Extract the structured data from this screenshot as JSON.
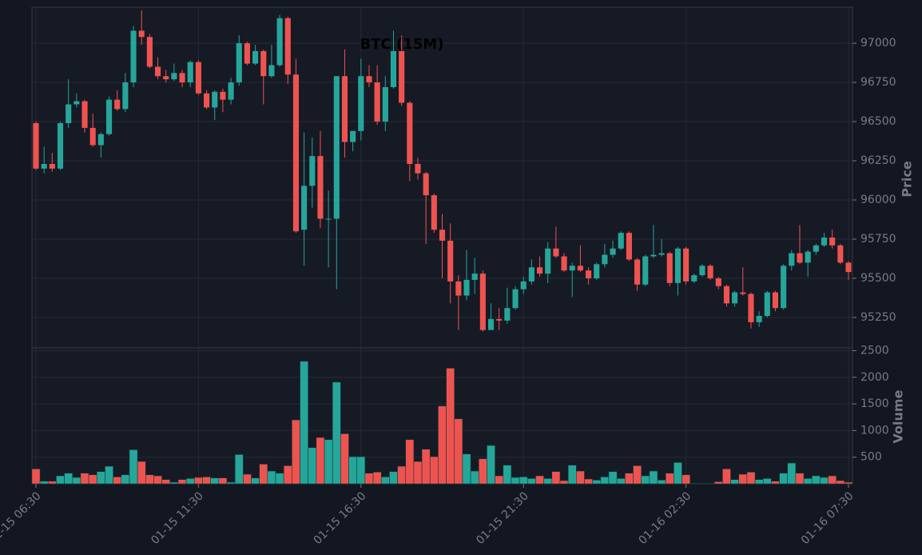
{
  "chart_data": [
    {
      "type": "candlestick",
      "title": "BTC (15M)",
      "ylabel": "Price",
      "up_color": "#26a69a",
      "down_color": "#ef5350",
      "grid": true,
      "x": [
        "01-15 06:30",
        "01-15 06:45",
        "01-15 07:00",
        "01-15 07:15",
        "01-15 07:30",
        "01-15 07:45",
        "01-15 08:00",
        "01-15 08:15",
        "01-15 08:30",
        "01-15 08:45",
        "01-15 09:00",
        "01-15 09:15",
        "01-15 09:30",
        "01-15 09:45",
        "01-15 10:00",
        "01-15 10:15",
        "01-15 10:30",
        "01-15 10:45",
        "01-15 11:00",
        "01-15 11:15",
        "01-15 11:30",
        "01-15 11:45",
        "01-15 12:00",
        "01-15 12:15",
        "01-15 12:30",
        "01-15 12:45",
        "01-15 13:00",
        "01-15 13:15",
        "01-15 13:30",
        "01-15 13:45",
        "01-15 14:00",
        "01-15 14:15",
        "01-15 14:30",
        "01-15 14:45",
        "01-15 15:00",
        "01-15 15:15",
        "01-15 15:30",
        "01-15 15:45",
        "01-15 16:00",
        "01-15 16:15",
        "01-15 16:30",
        "01-15 16:45",
        "01-15 17:00",
        "01-15 17:15",
        "01-15 17:30",
        "01-15 17:45",
        "01-15 18:00",
        "01-15 18:15",
        "01-15 18:30",
        "01-15 18:45",
        "01-15 19:00",
        "01-15 19:15",
        "01-15 19:30",
        "01-15 19:45",
        "01-15 20:00",
        "01-15 20:15",
        "01-15 20:30",
        "01-15 20:45",
        "01-15 21:00",
        "01-15 21:15",
        "01-15 21:30",
        "01-15 21:45",
        "01-15 22:00",
        "01-15 22:15",
        "01-15 22:30",
        "01-15 22:45",
        "01-15 23:00",
        "01-15 23:15",
        "01-15 23:30",
        "01-15 23:45",
        "01-16 00:00",
        "01-16 00:15",
        "01-16 00:30",
        "01-16 00:45",
        "01-16 01:00",
        "01-16 01:15",
        "01-16 01:30",
        "01-16 01:45",
        "01-16 02:00",
        "01-16 02:15",
        "01-16 02:30",
        "01-16 02:45",
        "01-16 03:00",
        "01-16 03:15",
        "01-16 03:30",
        "01-16 03:45",
        "01-16 04:00",
        "01-16 04:15",
        "01-16 04:30",
        "01-16 04:45",
        "01-16 05:00",
        "01-16 05:15",
        "01-16 05:30",
        "01-16 05:45",
        "01-16 06:00",
        "01-16 06:15",
        "01-16 06:30",
        "01-16 06:45",
        "01-16 07:00",
        "01-16 07:15",
        "01-16 07:30"
      ],
      "open": [
        96490,
        96200,
        96230,
        96200,
        96490,
        96610,
        96630,
        96460,
        96350,
        96420,
        96640,
        96580,
        96750,
        97080,
        97040,
        96850,
        96790,
        96770,
        96810,
        96750,
        96880,
        96680,
        96590,
        96690,
        96640,
        96750,
        97000,
        96870,
        96950,
        96790,
        96860,
        97160,
        96800,
        95810,
        96090,
        96280,
        95880,
        95880,
        96790,
        96370,
        96440,
        96790,
        96750,
        96500,
        96720,
        96950,
        96620,
        96230,
        96170,
        96030,
        95810,
        95740,
        95480,
        95390,
        95490,
        95530,
        95170,
        95240,
        95230,
        95310,
        95430,
        95480,
        95570,
        95530,
        95690,
        95640,
        95550,
        95580,
        95550,
        95500,
        95590,
        95650,
        95690,
        95790,
        95620,
        95460,
        95640,
        95650,
        95660,
        95470,
        95690,
        95480,
        95520,
        95580,
        95500,
        95450,
        95340,
        95410,
        95400,
        95220,
        95260,
        95410,
        95310,
        95580,
        95660,
        95600,
        95670,
        95710,
        95760,
        95710,
        95600
      ],
      "high": [
        96500,
        96340,
        96300,
        96500,
        96770,
        96680,
        96640,
        96550,
        96430,
        96660,
        96700,
        96810,
        97110,
        97210,
        97060,
        96910,
        96830,
        96870,
        96830,
        96890,
        96890,
        96700,
        96700,
        96710,
        96780,
        97050,
        97010,
        96990,
        96960,
        96990,
        97180,
        97170,
        96900,
        96430,
        96400,
        96440,
        96060,
        96790,
        96960,
        96440,
        96900,
        96860,
        96860,
        96790,
        97080,
        97050,
        96630,
        96270,
        96180,
        96040,
        95910,
        95850,
        95520,
        95680,
        95630,
        95550,
        95340,
        95310,
        95440,
        95450,
        95510,
        95620,
        95640,
        95730,
        95830,
        95660,
        95600,
        95710,
        95570,
        95600,
        95720,
        95740,
        95800,
        95800,
        95630,
        95650,
        95840,
        95750,
        95670,
        95700,
        95700,
        95530,
        95590,
        95590,
        95510,
        95460,
        95420,
        95570,
        95410,
        95290,
        95420,
        95420,
        95590,
        95680,
        95840,
        95680,
        95720,
        95790,
        95810,
        95720,
        95610
      ],
      "low": [
        96190,
        96170,
        96180,
        96190,
        96460,
        96590,
        96430,
        96340,
        96270,
        96410,
        96570,
        96560,
        96720,
        96990,
        96840,
        96770,
        96750,
        96760,
        96720,
        96720,
        96670,
        96580,
        96510,
        96560,
        96610,
        96730,
        96860,
        96860,
        96610,
        96780,
        96850,
        96740,
        95790,
        95580,
        95950,
        95820,
        95570,
        95430,
        96270,
        96310,
        96380,
        96720,
        96480,
        96440,
        96710,
        96600,
        96120,
        96130,
        95720,
        95790,
        95500,
        95340,
        95170,
        95360,
        95400,
        95160,
        95190,
        95170,
        95210,
        95300,
        95400,
        95460,
        95510,
        95470,
        95630,
        95540,
        95380,
        95540,
        95460,
        95490,
        95570,
        95630,
        95680,
        95610,
        95420,
        95450,
        95630,
        95640,
        95450,
        95390,
        95460,
        95470,
        95510,
        95490,
        95430,
        95320,
        95320,
        95390,
        95180,
        95190,
        95250,
        95290,
        95300,
        95550,
        95590,
        95510,
        95650,
        95700,
        95690,
        95590,
        95490
      ],
      "close": [
        96200,
        96230,
        96200,
        96490,
        96610,
        96630,
        96460,
        96350,
        96420,
        96640,
        96580,
        96750,
        97080,
        97040,
        96850,
        96790,
        96770,
        96810,
        96750,
        96880,
        96680,
        96590,
        96690,
        96640,
        96750,
        97000,
        96870,
        96950,
        96790,
        96860,
        97160,
        96800,
        95800,
        96090,
        96280,
        95880,
        95880,
        96790,
        96370,
        96440,
        96790,
        96750,
        96500,
        96720,
        96950,
        96620,
        96230,
        96170,
        96030,
        95810,
        95740,
        95480,
        95390,
        95490,
        95530,
        95170,
        95240,
        95230,
        95310,
        95430,
        95480,
        95570,
        95530,
        95690,
        95640,
        95550,
        95580,
        95550,
        95500,
        95590,
        95650,
        95690,
        95790,
        95620,
        95460,
        95640,
        95650,
        95660,
        95470,
        95690,
        95480,
        95520,
        95580,
        95500,
        95450,
        95340,
        95410,
        95400,
        95220,
        95260,
        95410,
        95310,
        95580,
        95660,
        95600,
        95670,
        95710,
        95760,
        95710,
        95600,
        95540
      ],
      "ylim": [
        95056,
        97230
      ],
      "yticks": [
        95250,
        95500,
        95750,
        96000,
        96250,
        96500,
        96750,
        97000
      ],
      "xticks": [
        "01-15 06:30",
        "01-15 11:30",
        "01-15 16:30",
        "01-15 21:30",
        "01-16 02:30",
        "01-16 07:30"
      ]
    },
    {
      "type": "bar",
      "ylabel": "Volume",
      "values": [
        280,
        50,
        50,
        150,
        200,
        120,
        200,
        170,
        230,
        330,
        130,
        170,
        640,
        420,
        170,
        150,
        80,
        30,
        80,
        100,
        120,
        130,
        110,
        110,
        30,
        550,
        180,
        110,
        370,
        240,
        200,
        340,
        1200,
        2300,
        680,
        870,
        830,
        1910,
        940,
        510,
        510,
        200,
        220,
        130,
        230,
        330,
        830,
        420,
        650,
        510,
        1460,
        2170,
        1220,
        560,
        240,
        470,
        720,
        150,
        350,
        120,
        130,
        100,
        150,
        100,
        230,
        60,
        350,
        240,
        90,
        70,
        130,
        230,
        100,
        200,
        340,
        150,
        240,
        70,
        200,
        400,
        170,
        10,
        10,
        10,
        40,
        280,
        80,
        180,
        220,
        80,
        100,
        50,
        200,
        390,
        200,
        100,
        150,
        120,
        150,
        60,
        30
      ],
      "ylim": [
        0,
        2552
      ],
      "yticks": [
        500,
        1000,
        1500,
        2000,
        2500
      ]
    }
  ]
}
